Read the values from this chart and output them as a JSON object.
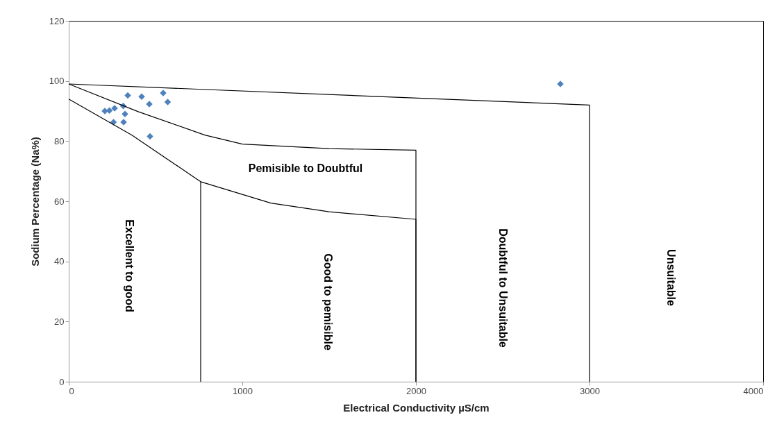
{
  "chart_data": {
    "type": "scatter",
    "xlabel": "Electrical Conductivity µS/cm",
    "ylabel": "Sodium Percentage (Na%)",
    "xlim": [
      0,
      4000
    ],
    "xticks": [
      0,
      1000,
      2000,
      3000,
      4000
    ],
    "ylim": [
      0,
      120
    ],
    "yticks": [
      0,
      20,
      40,
      60,
      80,
      100,
      120
    ],
    "grid": false,
    "series": [
      {
        "marker": "diamond",
        "color": "#4f81bd",
        "x": [
          340,
          420,
          544,
          570,
          464,
          314,
          208,
          234,
          264,
          324,
          258,
          316,
          468,
          2832
        ],
        "values": [
          95.2,
          94.8,
          96,
          93,
          92.3,
          91.7,
          90,
          90.2,
          90.9,
          89,
          86.3,
          86.3,
          81.6,
          99
        ]
      },
      {
        "type": "line",
        "color": "#000000",
        "x": [
          0,
          3000,
          3000
        ],
        "values": [
          99,
          92,
          0
        ],
        "marker": "none"
      },
      {
        "type": "line",
        "color": "#000000",
        "x": [
          0,
          400,
          784,
          1000,
          1500,
          2000,
          2000
        ],
        "values": [
          99,
          89.8,
          82,
          79,
          77.5,
          77,
          0
        ],
        "marker": "none"
      },
      {
        "type": "line",
        "color": "#000000",
        "x": [
          0,
          364,
          760,
          1164,
          1500,
          2000,
          2000
        ],
        "values": [
          94,
          82,
          66.5,
          59.4,
          56.5,
          54,
          0
        ],
        "marker": "none"
      },
      {
        "type": "line",
        "color": "#000000",
        "x": [
          760,
          760
        ],
        "values": [
          0,
          66.5
        ],
        "marker": "none"
      }
    ],
    "annotations": [
      "Pemisible to Doubtful",
      "Excellent to good",
      "Good to pemisible",
      "Doubtful to Unsuitable",
      "Unsuitable"
    ]
  }
}
